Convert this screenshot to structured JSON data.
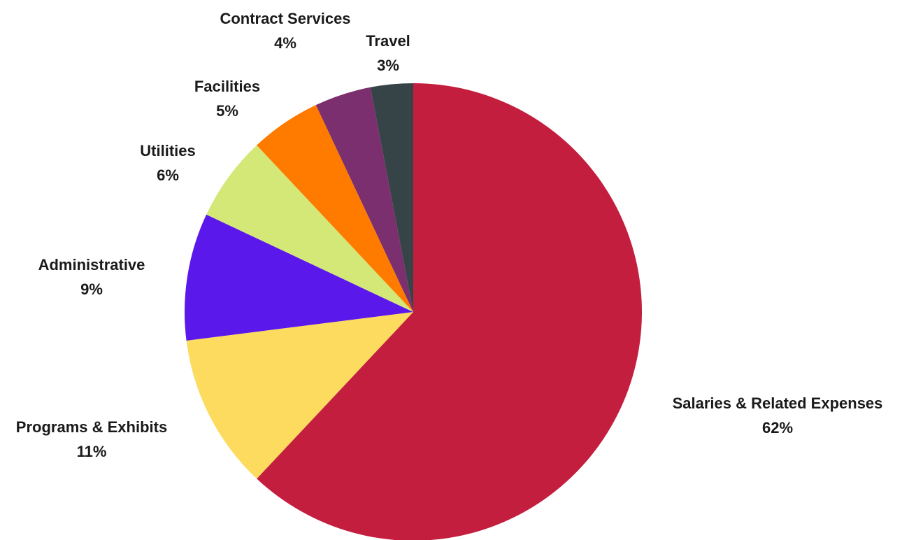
{
  "chart_data": {
    "type": "pie",
    "categories": [
      "Salaries & Related Expenses",
      "Programs & Exhibits",
      "Administrative",
      "Utilities",
      "Facilities",
      "Contract Services",
      "Travel"
    ],
    "values": [
      62,
      11,
      9,
      6,
      5,
      4,
      3
    ],
    "value_labels": [
      "62%",
      "11%",
      "9%",
      "6%",
      "5%",
      "4%",
      "3%"
    ],
    "colors": [
      "#c41e3f",
      "#fddb5e",
      "#5b18ea",
      "#d4e877",
      "#ff7b00",
      "#7b2f6e",
      "#364447"
    ],
    "start_angle_degrees": 0,
    "direction": "clockwise",
    "legend": "none",
    "grid": false
  }
}
